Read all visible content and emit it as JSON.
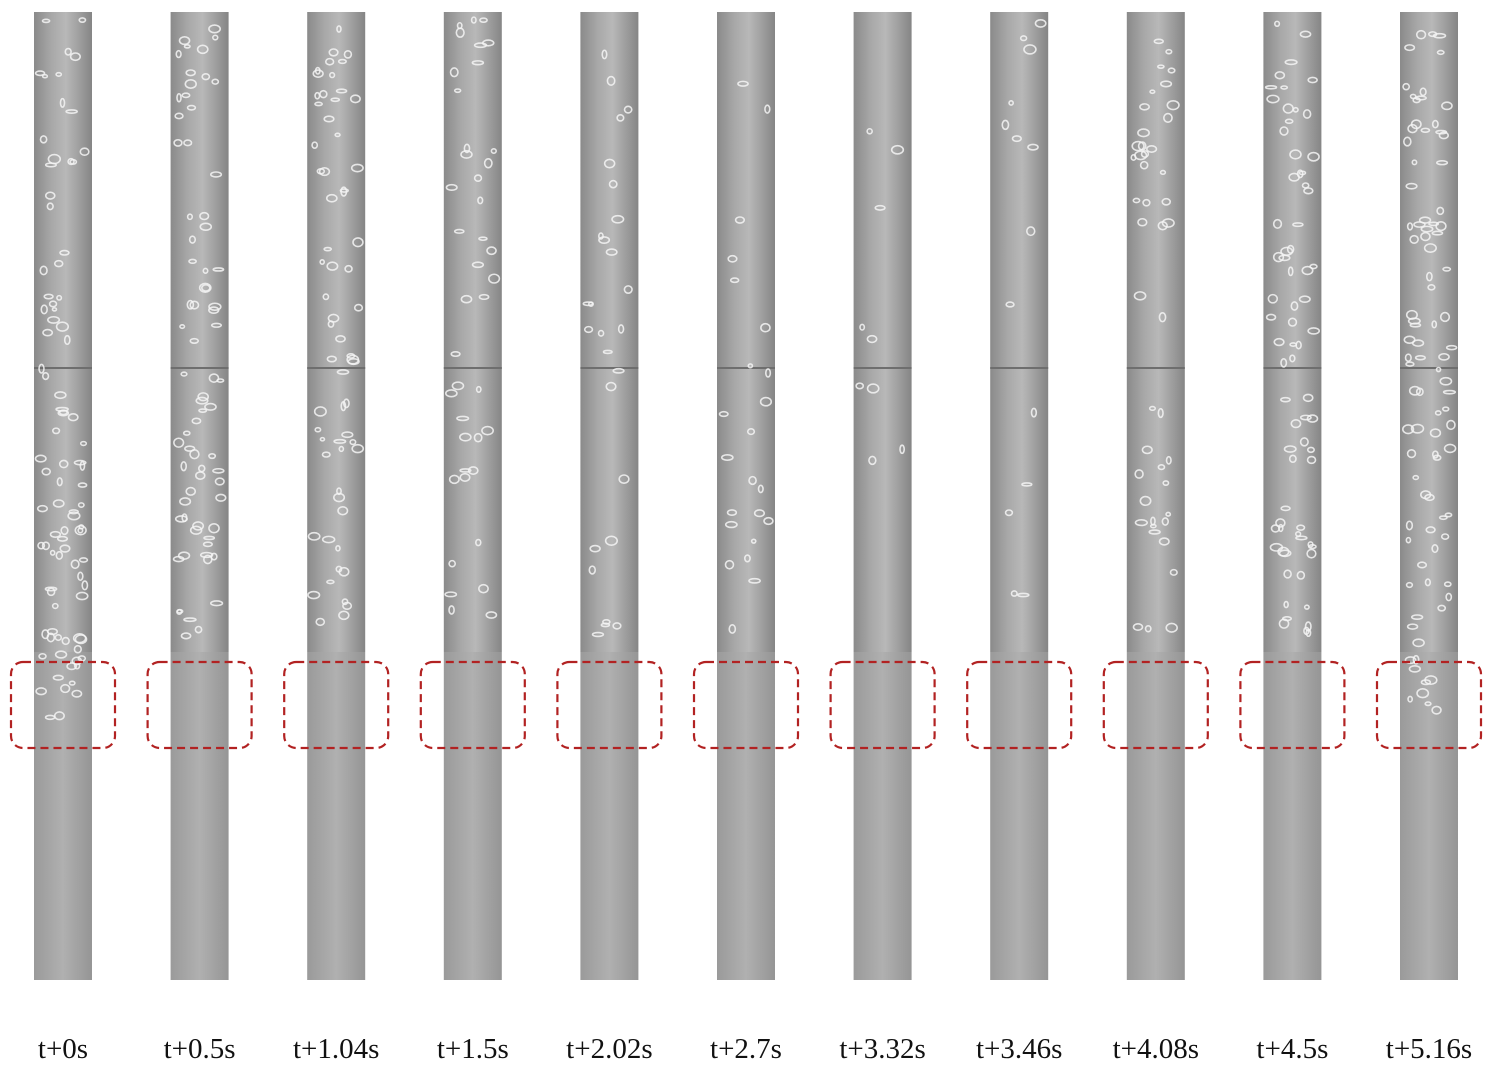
{
  "frames": [
    "t+0s",
    "t+0.5s",
    "t+1.04s",
    "t+1.5s",
    "t+2.02s",
    "t+2.7s",
    "t+3.32s",
    "t+3.46s",
    "t+4.08s",
    "t+4.5s",
    "t+5.16s"
  ]
}
